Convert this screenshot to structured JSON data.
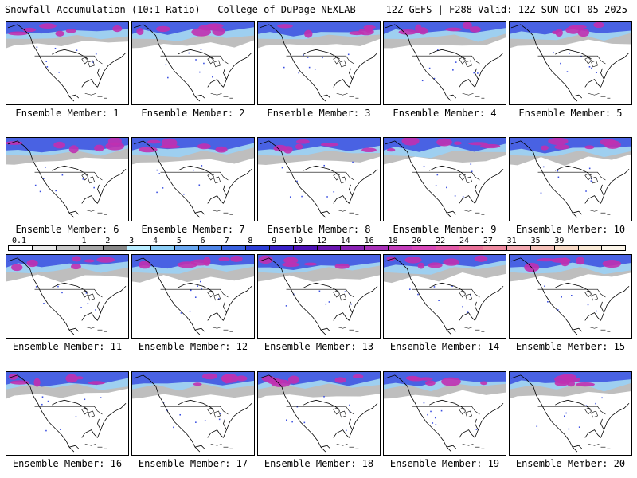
{
  "header": {
    "left_title": "Snowfall Accumulation (10:1 Ratio) | College of DuPage NEXLAB",
    "right_title": "12Z GEFS | F288 Valid: 12Z SUN OCT 05 2025"
  },
  "panels": [
    {
      "label": "Ensemble Member: 1"
    },
    {
      "label": "Ensemble Member: 2"
    },
    {
      "label": "Ensemble Member: 3"
    },
    {
      "label": "Ensemble Member: 4"
    },
    {
      "label": "Ensemble Member: 5"
    },
    {
      "label": "Ensemble Member: 6"
    },
    {
      "label": "Ensemble Member: 7"
    },
    {
      "label": "Ensemble Member: 8"
    },
    {
      "label": "Ensemble Member: 9"
    },
    {
      "label": "Ensemble Member: 10"
    },
    {
      "label": "Ensemble Member: 11"
    },
    {
      "label": "Ensemble Member: 12"
    },
    {
      "label": "Ensemble Member: 13"
    },
    {
      "label": "Ensemble Member: 14"
    },
    {
      "label": "Ensemble Member: 15"
    },
    {
      "label": "Ensemble Member: 16"
    },
    {
      "label": "Ensemble Member: 17"
    },
    {
      "label": "Ensemble Member: 18"
    },
    {
      "label": "Ensemble Member: 19"
    },
    {
      "label": "Ensemble Member: 20"
    }
  ],
  "legend": {
    "labels": [
      "0.1",
      "1",
      "2",
      "3",
      "4",
      "5",
      "6",
      "7",
      "8",
      "9",
      "10",
      "12",
      "14",
      "16",
      "18",
      "20",
      "22",
      "24",
      "27",
      "31",
      "35",
      "39"
    ],
    "colors": [
      "#ffffff",
      "#e8e8e8",
      "#c8c8c8",
      "#a8a8a8",
      "#888888",
      "#b8ecff",
      "#8ccdf5",
      "#6aa8f0",
      "#4f86e8",
      "#3a62e0",
      "#2d3fd6",
      "#3a22c8",
      "#4f12b6",
      "#6a16b0",
      "#8a22b4",
      "#a830b8",
      "#c23cba",
      "#d648b8",
      "#e25aa8",
      "#e87098",
      "#ee8aa0",
      "#f2a8b0",
      "#f4c0b8",
      "#f6d8c4",
      "#f8e8d4",
      "#fbf4e8"
    ]
  },
  "colors": {
    "background": "#ffffff",
    "text": "#000000",
    "map_border": "#000000",
    "heavy_snow": "#c030b0",
    "moderate_snow": "#3a4fe0",
    "light_snow": "#9ad0f5",
    "trace_gray": "#a8a8a8"
  }
}
